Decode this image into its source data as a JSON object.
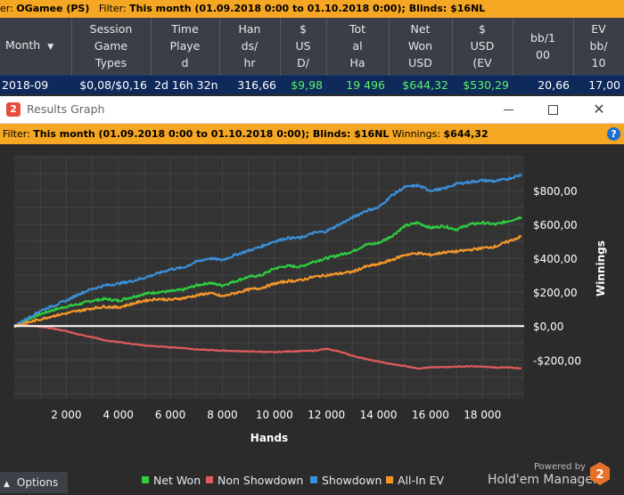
{
  "top_filter": {
    "prefix": "er:",
    "player": "OGamee (PS)",
    "filter_label": "Filter:",
    "filter_text": "This month (01.09.2018 0:00 to 01.10.2018 0:00); Blinds: $16NL"
  },
  "stats_table": {
    "headers": [
      "Month",
      "Session Game Types",
      "Time Played",
      "Hands/hr",
      "$ USD/",
      "Total Ha",
      "Net Won USD",
      "$ USD (EV",
      "bb/100",
      "EV bb/10"
    ],
    "header_lines": [
      [
        "Month"
      ],
      [
        "Session",
        "Game",
        "Types"
      ],
      [
        "Time",
        "Playe",
        "d"
      ],
      [
        "Han",
        "ds/",
        "hr"
      ],
      [
        "$",
        "US",
        "D/"
      ],
      [
        "Tot",
        "al",
        "Ha"
      ],
      [
        "Net",
        "Won",
        "USD"
      ],
      [
        "$",
        "USD",
        "(EV"
      ],
      [
        "bb/1",
        "00"
      ],
      [
        "EV",
        "bb/",
        "10"
      ]
    ],
    "row": [
      "2018-09",
      "$0,08/$0,16",
      "2d 16h 32n",
      "316,66",
      "$9,98",
      "19 496",
      "$644,32",
      "$530,29",
      "20,66",
      "17,00"
    ]
  },
  "window": {
    "title": "Results Graph",
    "logo_text": "2",
    "minimize_label": "minimize",
    "maximize_label": "maximize",
    "close_label": "close"
  },
  "graph_filter": {
    "filter_label": "Filter:",
    "filter_text": "This month (01.09.2018 0:00 to 01.10.2018 0:00); Blinds: $16NL",
    "winnings_label": "Winnings:",
    "winnings_value": "$644,32",
    "help": "?"
  },
  "chart_data": {
    "type": "line",
    "xlabel": "Hands",
    "ylabel": "Winnings",
    "xlim": [
      0,
      19600
    ],
    "ylim": [
      -430,
      1000
    ],
    "x_ticks": [
      2000,
      4000,
      6000,
      8000,
      10000,
      12000,
      14000,
      16000,
      18000
    ],
    "x_tick_labels": [
      "2 000",
      "4 000",
      "6 000",
      "8 000",
      "10 000",
      "12 000",
      "14 000",
      "16 000",
      "18 000"
    ],
    "y_ticks": [
      800,
      600,
      400,
      200,
      0,
      -200
    ],
    "y_tick_labels": [
      "$800,00",
      "$600,00",
      "$400,00",
      "$200,00",
      "$0,00",
      "-$200,00"
    ],
    "x": [
      0,
      500,
      1000,
      1500,
      2000,
      2500,
      3000,
      3500,
      4000,
      4500,
      5000,
      5500,
      6000,
      6500,
      7000,
      7500,
      8000,
      8500,
      9000,
      9500,
      10000,
      10500,
      11000,
      11500,
      12000,
      12500,
      13000,
      13500,
      14000,
      14500,
      15000,
      15500,
      16000,
      16500,
      17000,
      17500,
      18000,
      18500,
      19000,
      19496
    ],
    "series": [
      {
        "name": "Net Won",
        "color": "#2ecc40",
        "values": [
          0,
          40,
          70,
          95,
          115,
          130,
          150,
          160,
          150,
          170,
          190,
          200,
          205,
          215,
          240,
          255,
          240,
          265,
          290,
          300,
          340,
          355,
          350,
          380,
          400,
          420,
          440,
          480,
          490,
          530,
          590,
          610,
          580,
          590,
          570,
          600,
          610,
          600,
          620,
          644
        ]
      },
      {
        "name": "Non Showdown",
        "color": "#e05a5a",
        "values": [
          0,
          5,
          -5,
          -15,
          -30,
          -50,
          -65,
          -85,
          -95,
          -105,
          -115,
          -120,
          -125,
          -130,
          -138,
          -142,
          -145,
          -148,
          -150,
          -152,
          -155,
          -150,
          -148,
          -146,
          -135,
          -150,
          -175,
          -195,
          -210,
          -225,
          -235,
          -250,
          -245,
          -242,
          -240,
          -238,
          -240,
          -245,
          -245,
          -250
        ]
      },
      {
        "name": "Showdown",
        "color": "#3a8fd8",
        "values": [
          0,
          45,
          90,
          120,
          150,
          190,
          220,
          240,
          250,
          265,
          285,
          310,
          335,
          345,
          380,
          400,
          390,
          420,
          445,
          470,
          500,
          520,
          520,
          550,
          560,
          600,
          640,
          680,
          700,
          770,
          820,
          830,
          800,
          810,
          840,
          850,
          860,
          855,
          870,
          894
        ]
      },
      {
        "name": "All-In EV",
        "color": "#f5962a",
        "values": [
          0,
          20,
          40,
          60,
          75,
          90,
          105,
          115,
          110,
          130,
          150,
          160,
          155,
          165,
          180,
          195,
          175,
          195,
          215,
          225,
          250,
          265,
          270,
          290,
          300,
          310,
          320,
          350,
          365,
          390,
          420,
          430,
          420,
          435,
          440,
          450,
          460,
          470,
          500,
          530
        ]
      }
    ],
    "grid": true,
    "legend_placement": "bottom"
  },
  "bottom": {
    "options_label": "Options",
    "legend": [
      "Net Won",
      "Non Showdown",
      "Showdown",
      "All-In EV"
    ],
    "powered_by": "Powered by",
    "product": "Hold'em Manager",
    "product_badge": "2"
  },
  "colors": {
    "filter_bar": "#f5a623",
    "header_bg": "#3a3f47",
    "row_bg": "#0e2a5a",
    "graph_bg": "#2b2b2b",
    "net_won": "#2ecc40",
    "non_showdown": "#e05a5a",
    "showdown": "#3a8fd8",
    "allin_ev": "#f5962a"
  }
}
